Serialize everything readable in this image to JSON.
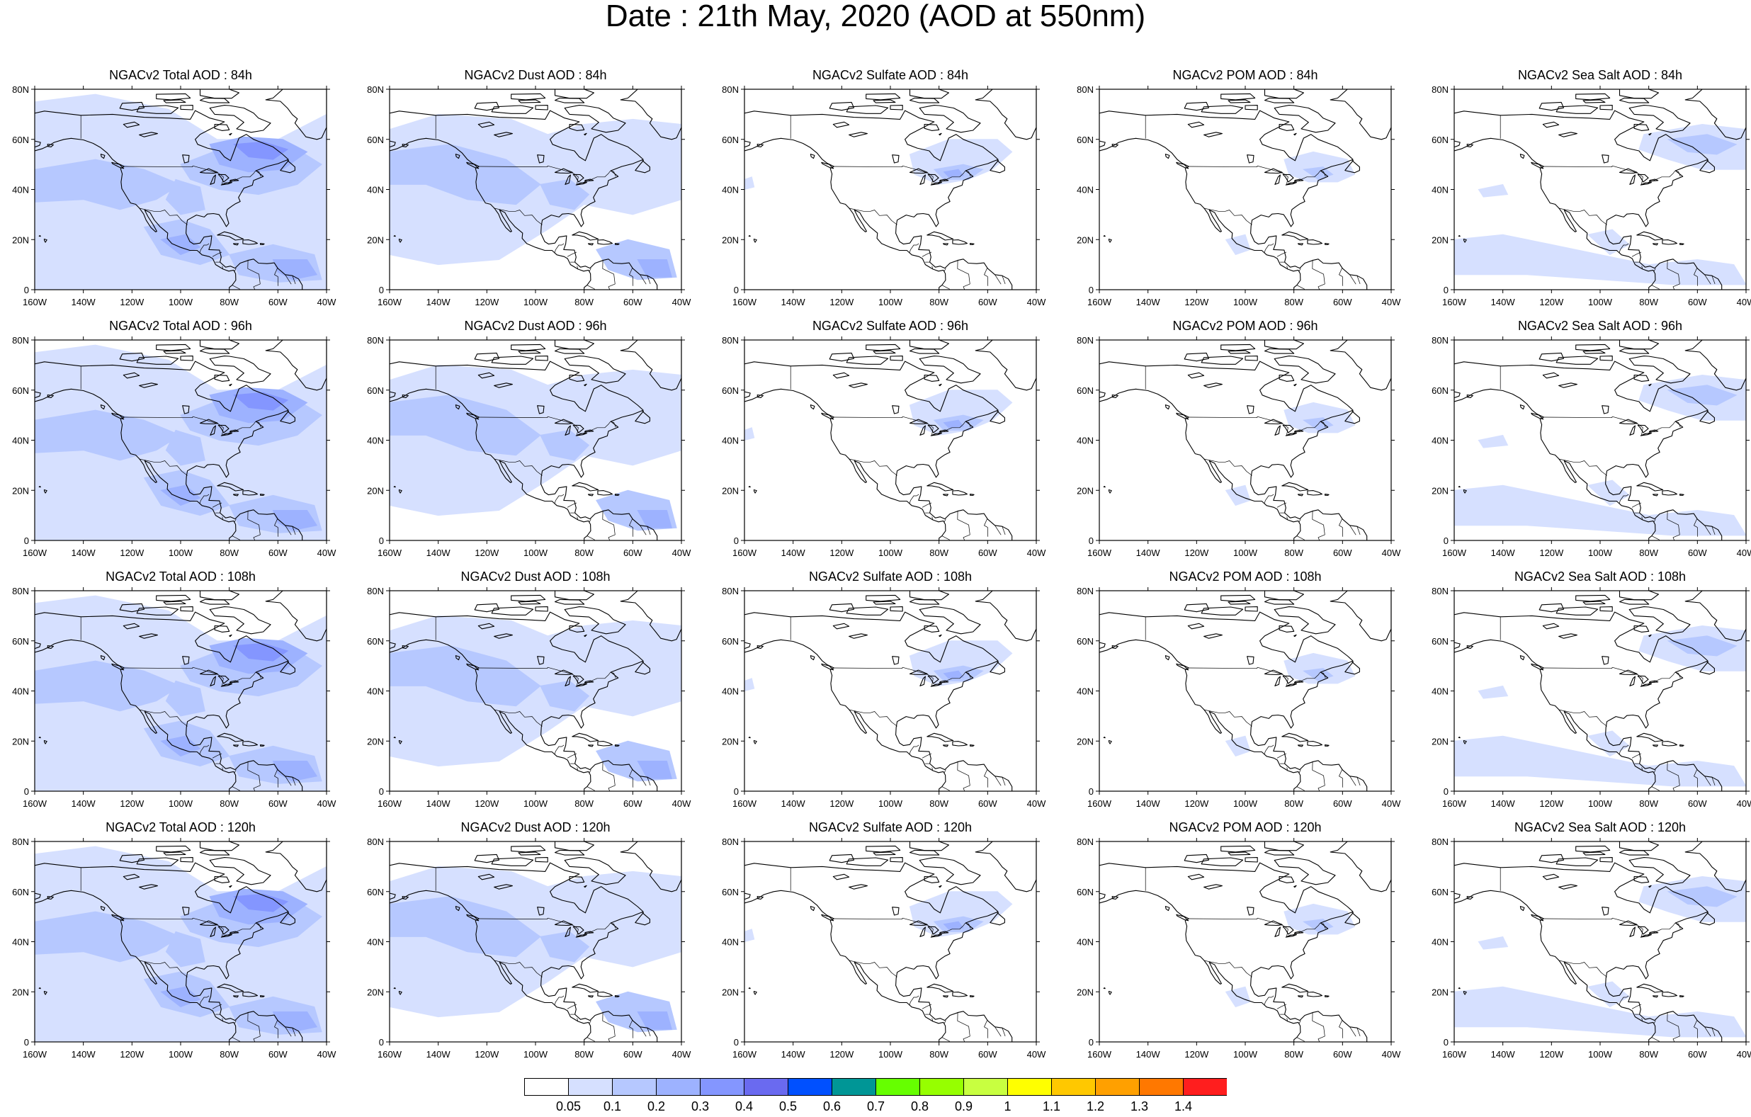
{
  "title": "Date : 21th May, 2020 (AOD at 550nm)",
  "lat_labels": [
    "80N",
    "60N",
    "40N",
    "20N",
    "0"
  ],
  "lon_labels": [
    "160W",
    "140W",
    "120W",
    "100W",
    "80W",
    "60W",
    "40W"
  ],
  "rows": [
    {
      "lead": "84h",
      "panels": [
        {
          "title": "NGACv2 Total AOD : 84h",
          "species": "total"
        },
        {
          "title": "NGACv2 Dust AOD : 84h",
          "species": "dust"
        },
        {
          "title": "NGACv2 Sulfate AOD : 84h",
          "species": "sulfate"
        },
        {
          "title": "NGACv2 POM AOD : 84h",
          "species": "pom"
        },
        {
          "title": "NGACv2 Sea Salt AOD : 84h",
          "species": "seasalt"
        }
      ]
    },
    {
      "lead": "96h",
      "panels": [
        {
          "title": "NGACv2 Total AOD : 96h",
          "species": "total"
        },
        {
          "title": "NGACv2 Dust AOD : 96h",
          "species": "dust"
        },
        {
          "title": "NGACv2 Sulfate AOD : 96h",
          "species": "sulfate"
        },
        {
          "title": "NGACv2 POM AOD : 96h",
          "species": "pom"
        },
        {
          "title": "NGACv2 Sea Salt AOD : 96h",
          "species": "seasalt"
        }
      ]
    },
    {
      "lead": "108h",
      "panels": [
        {
          "title": "NGACv2 Total AOD : 108h",
          "species": "total"
        },
        {
          "title": "NGACv2 Dust AOD : 108h",
          "species": "dust"
        },
        {
          "title": "NGACv2 Sulfate AOD : 108h",
          "species": "sulfate"
        },
        {
          "title": "NGACv2 POM AOD : 108h",
          "species": "pom"
        },
        {
          "title": "NGACv2 Sea Salt AOD : 108h",
          "species": "seasalt"
        }
      ]
    },
    {
      "lead": "120h",
      "panels": [
        {
          "title": "NGACv2 Total AOD : 120h",
          "species": "total"
        },
        {
          "title": "NGACv2 Dust AOD : 120h",
          "species": "dust"
        },
        {
          "title": "NGACv2 Sulfate AOD : 120h",
          "species": "sulfate"
        },
        {
          "title": "NGACv2 POM AOD : 120h",
          "species": "pom"
        },
        {
          "title": "NGACv2 Sea Salt  AOD : 120h",
          "species": "seasalt"
        }
      ]
    }
  ],
  "colorbar": {
    "labels": [
      "0.05",
      "0.1",
      "0.2",
      "0.3",
      "0.4",
      "0.5",
      "0.6",
      "0.7",
      "0.8",
      "0.9",
      "1",
      "1.1",
      "1.2",
      "1.3",
      "1.4"
    ],
    "colors": [
      "#ffffff",
      "#d6e0ff",
      "#b6c8ff",
      "#9db2ff",
      "#8496ff",
      "#6a6af0",
      "#0050ff",
      "#009696",
      "#66ff00",
      "#96ff00",
      "#c8ff40",
      "#ffff00",
      "#ffc800",
      "#ffa000",
      "#ff7800",
      "#ff1e1e"
    ]
  }
}
